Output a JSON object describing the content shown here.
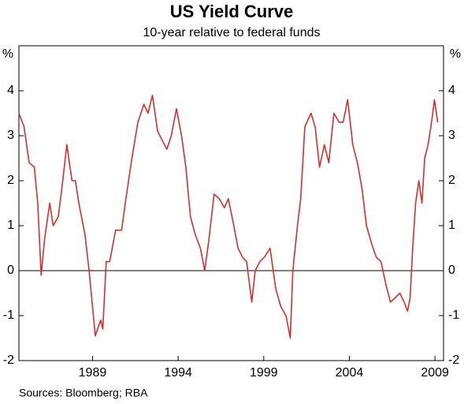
{
  "chart_data": {
    "type": "line",
    "title": "US Yield Curve",
    "subtitle": "10-year relative to federal funds",
    "ylabel": "%",
    "source": "Sources: Bloomberg; RBA",
    "x": [
      1984.7,
      1985.0,
      1985.3,
      1985.6,
      1985.8,
      1986.0,
      1986.2,
      1986.5,
      1986.7,
      1987.0,
      1987.2,
      1987.5,
      1987.8,
      1988.0,
      1988.2,
      1988.56,
      1988.8,
      1989.0,
      1989.16,
      1989.48,
      1989.6,
      1989.8,
      1990.0,
      1990.35,
      1990.7,
      1990.95,
      1991.3,
      1991.65,
      1992.0,
      1992.24,
      1992.5,
      1992.8,
      1993.07,
      1993.34,
      1993.6,
      1993.9,
      1994.2,
      1994.45,
      1994.72,
      1995.0,
      1995.3,
      1995.55,
      1995.8,
      1996.1,
      1996.4,
      1996.7,
      1996.93,
      1997.2,
      1997.5,
      1997.76,
      1998.0,
      1998.3,
      1998.5,
      1998.77,
      1999.04,
      1999.37,
      1999.7,
      2000.0,
      2000.3,
      2000.55,
      2000.7,
      2000.97,
      2001.16,
      2001.4,
      2001.76,
      2002.0,
      2002.26,
      2002.54,
      2002.8,
      2003.1,
      2003.4,
      2003.64,
      2003.9,
      2004.2,
      2004.47,
      2004.75,
      2005.0,
      2005.3,
      2005.57,
      2005.85,
      2006.13,
      2006.4,
      2006.68,
      2006.95,
      2007.2,
      2007.4,
      2007.55,
      2007.7,
      2007.87,
      2008.06,
      2008.24,
      2008.4,
      2008.6,
      2008.8,
      2008.97,
      2009.16
    ],
    "series": [
      {
        "name": "10-year relative to federal funds",
        "color": "#d32f2f",
        "values": [
          3.5,
          3.2,
          2.4,
          2.3,
          1.5,
          -0.1,
          0.7,
          1.5,
          1.0,
          1.2,
          1.8,
          2.8,
          2.0,
          2.0,
          1.5,
          0.8,
          0.0,
          -0.8,
          -1.45,
          -1.1,
          -1.3,
          0.2,
          0.2,
          0.9,
          0.9,
          1.6,
          2.5,
          3.3,
          3.7,
          3.5,
          3.9,
          3.1,
          2.9,
          2.7,
          3.0,
          3.6,
          3.0,
          2.3,
          1.2,
          0.8,
          0.5,
          0.0,
          0.7,
          1.7,
          1.6,
          1.4,
          1.6,
          1.1,
          0.5,
          0.3,
          0.2,
          -0.7,
          0.0,
          0.2,
          0.3,
          0.5,
          -0.4,
          -0.8,
          -1.0,
          -1.5,
          0.0,
          1.0,
          1.6,
          3.2,
          3.5,
          3.2,
          2.3,
          2.8,
          2.4,
          3.5,
          3.3,
          3.3,
          3.8,
          2.8,
          2.4,
          1.8,
          1.0,
          0.6,
          0.3,
          0.2,
          -0.3,
          -0.7,
          -0.6,
          -0.5,
          -0.7,
          -0.9,
          -0.6,
          0.5,
          1.5,
          2.0,
          1.5,
          2.5,
          2.8,
          3.3,
          3.8,
          3.3
        ]
      }
    ],
    "xlim": [
      1984.7,
      2009.5
    ],
    "xticks": [
      1989,
      1994,
      1999,
      2004,
      2009
    ],
    "ylim": [
      -2,
      5
    ],
    "yticks": [
      -2,
      -1,
      0,
      1,
      2,
      3,
      4
    ]
  }
}
